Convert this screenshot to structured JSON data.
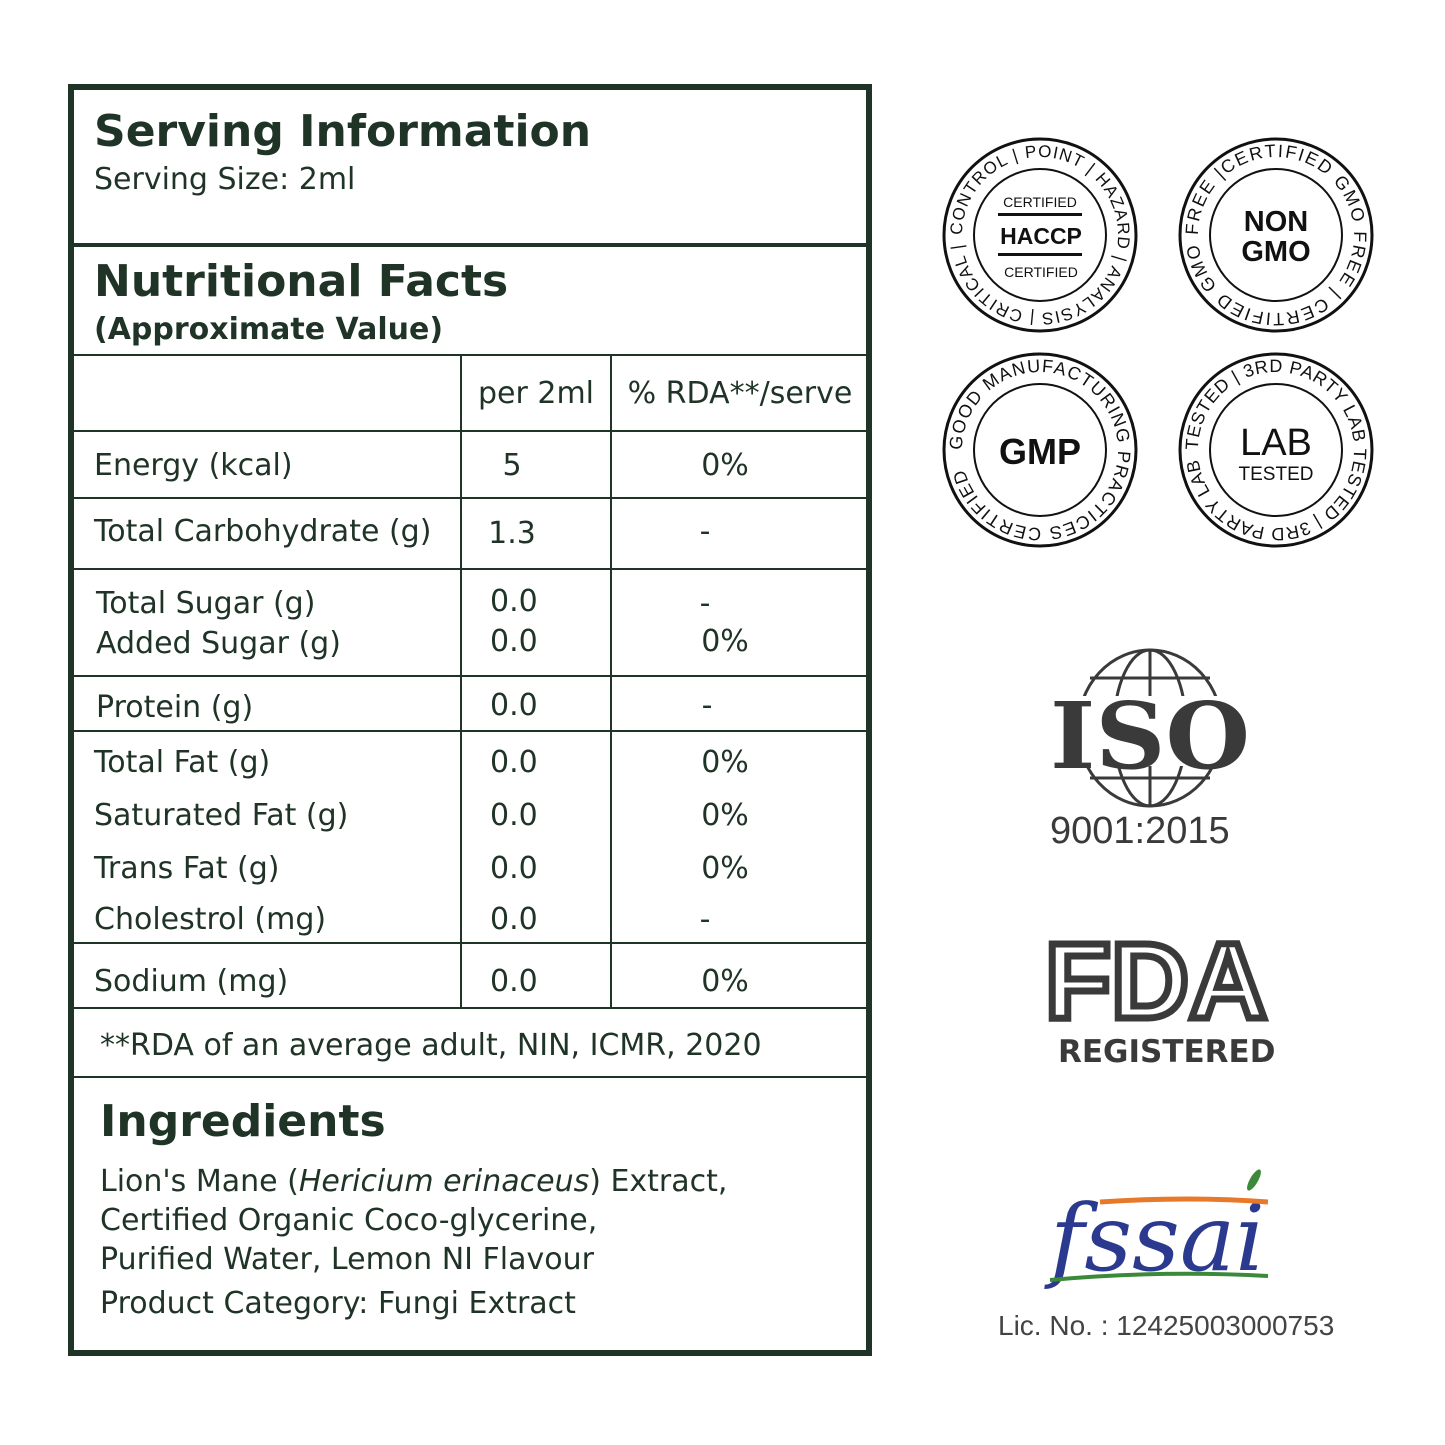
{
  "serving": {
    "title": "Serving Information",
    "size": "Serving Size: 2ml"
  },
  "facts": {
    "title": "Nutritional Facts",
    "subtitle": "(Approximate Value)",
    "headers": [
      "per 2ml",
      "% RDA**/serve"
    ],
    "rows": [
      {
        "name": "Energy (kcal)",
        "value": "5",
        "rda": "0%"
      },
      {
        "name": "Total Carbohydrate (g)",
        "value": "1.3",
        "rda": "-"
      },
      {
        "name": "Total Sugar (g)",
        "value": "0.0",
        "rda": "-"
      },
      {
        "name": "Added Sugar (g)",
        "value": "0.0",
        "rda": "0%"
      },
      {
        "name": "Protein (g)",
        "value": "0.0",
        "rda": "-"
      },
      {
        "name": "Total Fat (g)",
        "value": "0.0",
        "rda": "0%"
      },
      {
        "name": "Saturated Fat (g)",
        "value": "0.0",
        "rda": "0%"
      },
      {
        "name": "Trans Fat (g)",
        "value": "0.0",
        "rda": "0%"
      },
      {
        "name": "Cholestrol (mg)",
        "value": "0.0",
        "rda": "-"
      },
      {
        "name": "Sodium (mg)",
        "value": "0.0",
        "rda": "0%"
      }
    ],
    "footnote": "**RDA of an average adult, NIN, ICMR, 2020"
  },
  "ingredients": {
    "title": "Ingredients",
    "line1_pre": "Lion's Mane (",
    "line1_italic": "Hericium erinaceus",
    "line1_post": ") Extract,",
    "line2": "Certified Organic Coco-glycerine,",
    "line3": "Purified Water, Lemon NI Flavour",
    "category": "Product Category: Fungi Extract"
  },
  "badges": {
    "haccp": {
      "ring": "CONTROL | POINT | HAZARD | ANALYSIS | CRITICAL |",
      "top": "CERTIFIED",
      "main": "HACCP",
      "bottom": "CERTIFIED"
    },
    "nongmo": {
      "ring": "FREE |CERTIFIED GMO FREE | CERTIFIED GMO",
      "line1": "NON",
      "line2": "GMO"
    },
    "gmp": {
      "ring": "GOOD MANUFACTURING PRACTICES CERTIFIED",
      "main": "GMP"
    },
    "lab": {
      "ring": "TESTED | 3RD PARTY LAB TESTED | 3RD PARTY LAB",
      "line1": "LAB",
      "line2": "TESTED"
    }
  },
  "iso": {
    "logo": "ISO",
    "standard": "9001:2015"
  },
  "fda": {
    "logo": "FDA",
    "label": "REGISTERED"
  },
  "fssai": {
    "logo": "fssai",
    "license": "Lic. No. : 12425003000753"
  },
  "colors": {
    "primary": "#1f3326",
    "fssai_blue": "#2b3a8f",
    "fssai_orange": "#e8792b",
    "fssai_green": "#3a8a3a"
  }
}
